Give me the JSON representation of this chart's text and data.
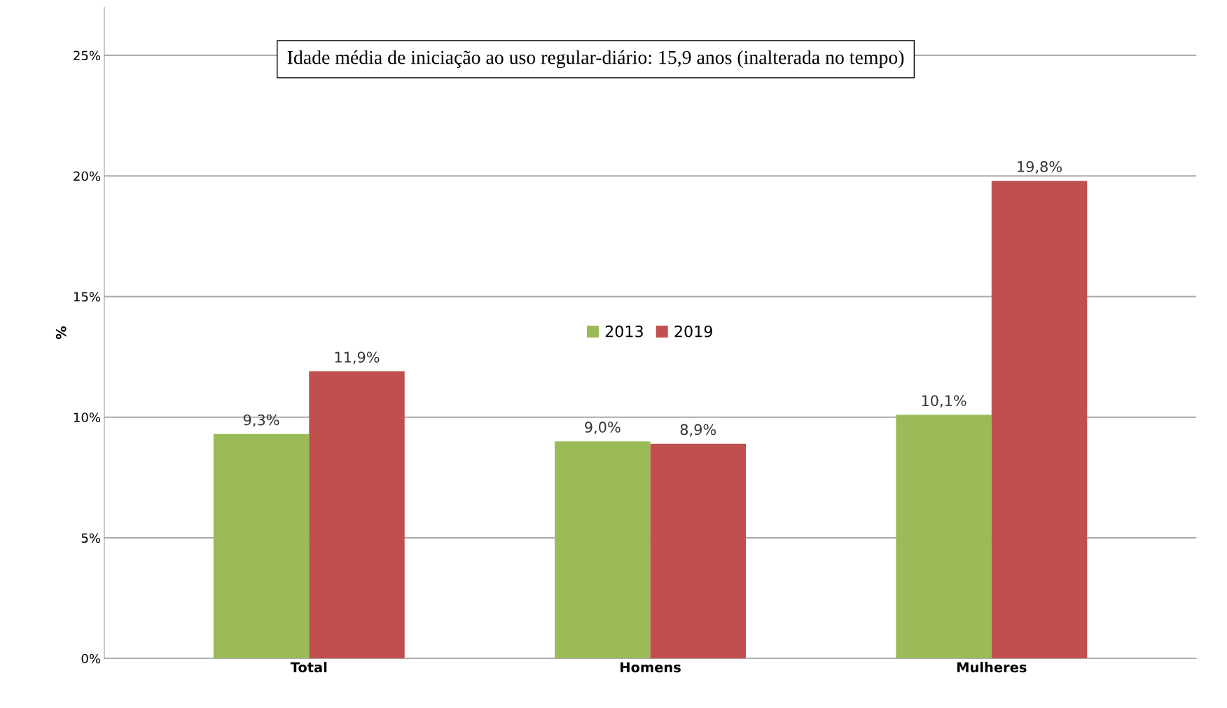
{
  "chart_data": {
    "type": "bar",
    "ylabel": "%",
    "categories": [
      "Total",
      "Homens",
      "Mulheres"
    ],
    "series": [
      {
        "name": "2013",
        "color": "#9bbb59",
        "values": [
          9.3,
          9.0,
          10.1
        ],
        "value_labels": [
          "9,3%",
          "9,0%",
          "10,1%"
        ]
      },
      {
        "name": "2019",
        "color": "#c0504d",
        "values": [
          11.9,
          8.9,
          19.8
        ],
        "value_labels": [
          "11,9%",
          "8,9%",
          "19,8%"
        ]
      }
    ],
    "ylim": [
      0,
      27
    ],
    "yticks": [
      {
        "value": 0,
        "label": "0%"
      },
      {
        "value": 5,
        "label": "5%"
      },
      {
        "value": 10,
        "label": "10%"
      },
      {
        "value": 15,
        "label": "15%"
      },
      {
        "value": 20,
        "label": "20%"
      },
      {
        "value": 25,
        "label": "25%"
      }
    ],
    "grid": "y",
    "legend": "center",
    "annotations": [
      "Idade média de iniciação ao uso regular-diário: 15,9 anos (inalterada no tempo)"
    ]
  }
}
